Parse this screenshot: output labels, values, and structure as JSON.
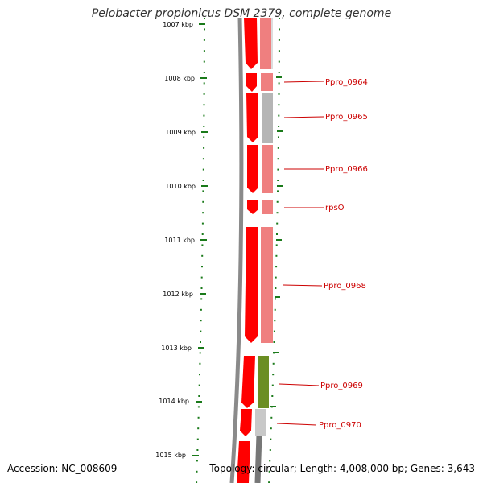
{
  "title": "Pelobacter propionicus DSM 2379, complete genome",
  "footer": {
    "accession": "Accession: NC_008609",
    "summary": "Topology: circular; Length: 4,008,000 bp; Genes: 3,643"
  },
  "scale": {
    "partial_top_label": "1007 kbp",
    "ticks": [
      "1008 kbp",
      "1009 kbp",
      "1010 kbp",
      "1011 kbp",
      "1012 kbp",
      "1013 kbp",
      "1014 kbp",
      "1015 kbp"
    ]
  },
  "genes": [
    {
      "label": "Ppro_0964",
      "color": "#ef7f7f"
    },
    {
      "label": "Ppro_0965",
      "color": "#b5b5b5"
    },
    {
      "label": "Ppro_0966",
      "color": "#ef7f7f"
    },
    {
      "label": "rpsO",
      "color": "#ef7f7f"
    },
    {
      "label": "Ppro_0968",
      "color": "#ef7f7f"
    },
    {
      "label": "Ppro_0969",
      "color": "#6b8e23"
    },
    {
      "label": "Ppro_0970",
      "color": "#c8c8c8"
    }
  ],
  "colors": {
    "cds_strand": "#ff0000",
    "cds_strand_dark": "#d40000",
    "label": "#cc0000",
    "tick": "#1a7a1a",
    "backbone": "#8a8a8a"
  }
}
